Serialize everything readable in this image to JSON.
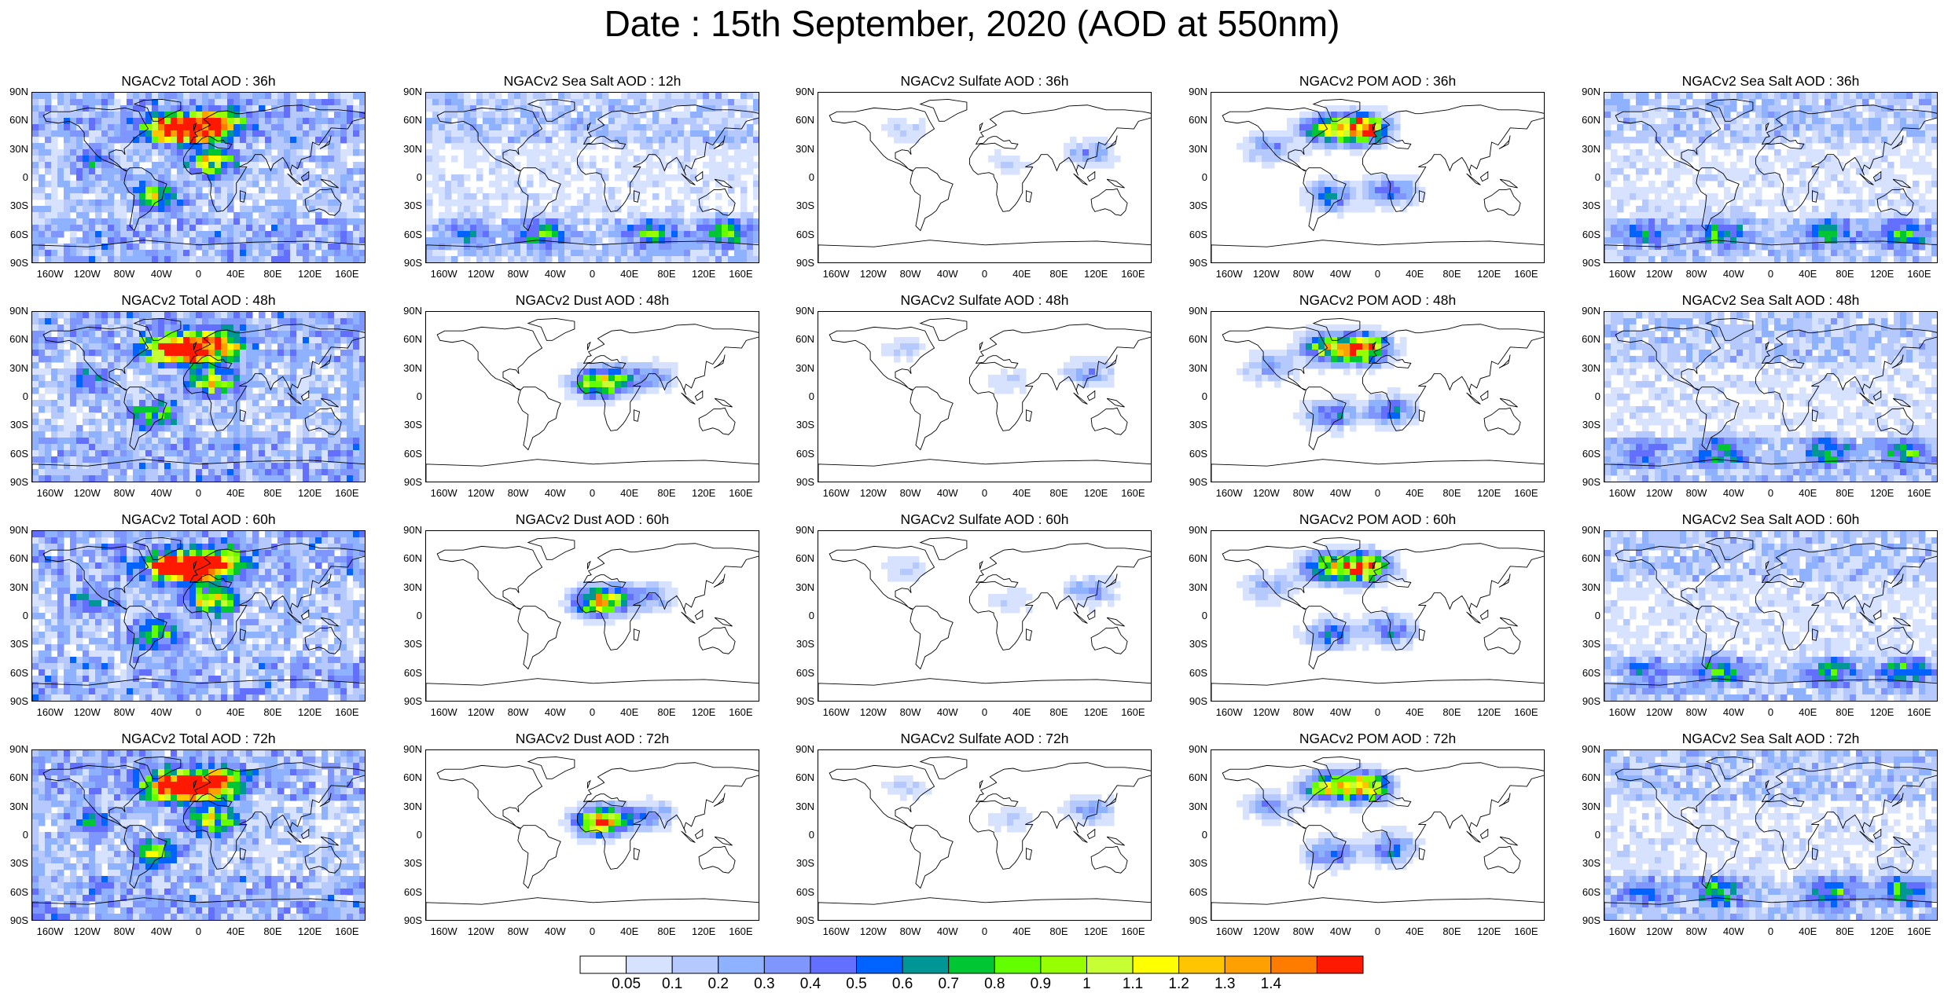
{
  "title": "Date : 15th September, 2020 (AOD at 550nm)",
  "lat_ticks": [
    "90N",
    "60N",
    "30N",
    "0",
    "30S",
    "60S",
    "90S"
  ],
  "lon_ticks": [
    "160W",
    "120W",
    "80W",
    "40W",
    "0",
    "40E",
    "80E",
    "120E",
    "160E"
  ],
  "rows": [
    [
      "NGACv2 Total AOD : 36h",
      "NGACv2 Sea Salt  AOD : 12h",
      "NGACv2 Sulfate AOD : 36h",
      "NGACv2 POM AOD : 36h",
      "NGACv2 Sea Salt  AOD : 36h"
    ],
    [
      "NGACv2 Total AOD : 48h",
      "NGACv2 Dust AOD : 48h",
      "NGACv2 Sulfate AOD : 48h",
      "NGACv2 POM AOD : 48h",
      "NGACv2 Sea Salt  AOD : 48h"
    ],
    [
      "NGACv2 Total AOD : 60h",
      "NGACv2 Dust AOD : 60h",
      "NGACv2 Sulfate AOD : 60h",
      "NGACv2 POM AOD : 60h",
      "NGACv2 Sea Salt  AOD : 60h"
    ],
    [
      "NGACv2 Total AOD : 72h",
      "NGACv2 Dust AOD : 72h",
      "NGACv2 Sulfate AOD : 72h",
      "NGACv2 POM AOD : 72h",
      "NGACv2 Sea Salt  AOD : 72h"
    ]
  ],
  "colorbar": {
    "labels": [
      "0.05",
      "0.1",
      "0.2",
      "0.3",
      "0.4",
      "0.5",
      "0.6",
      "0.7",
      "0.8",
      "0.9",
      "1",
      "1.1",
      "1.2",
      "1.3",
      "1.4"
    ],
    "colors": [
      "#ffffff",
      "#d6e2ff",
      "#b5c9ff",
      "#8eb2ff",
      "#7f96ff",
      "#6370ff",
      "#0063ff",
      "#009696",
      "#00c633",
      "#63ff00",
      "#96ff00",
      "#c6ff33",
      "#ffff00",
      "#ffc600",
      "#ffa000",
      "#ff7c00",
      "#ff1900"
    ]
  }
}
